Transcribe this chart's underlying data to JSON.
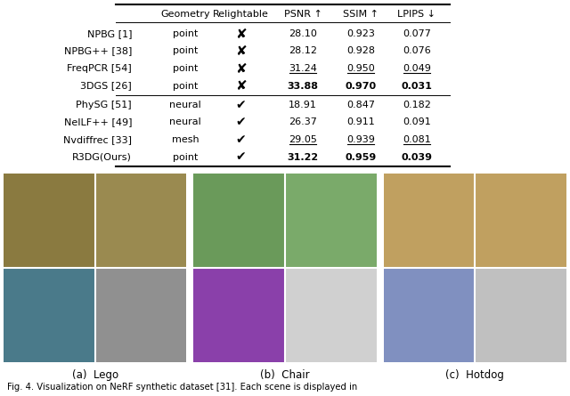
{
  "rows_group1": [
    {
      "method": "NPBG [1]",
      "geometry": "point",
      "relightable": false,
      "psnr": "28.10",
      "ssim": "0.923",
      "lpips": "0.077",
      "bold_psnr": false,
      "bold_ssim": false,
      "bold_lpips": false,
      "ul_psnr": false,
      "ul_ssim": false,
      "ul_lpips": false
    },
    {
      "method": "NPBG++ [38]",
      "geometry": "point",
      "relightable": false,
      "psnr": "28.12",
      "ssim": "0.928",
      "lpips": "0.076",
      "bold_psnr": false,
      "bold_ssim": false,
      "bold_lpips": false,
      "ul_psnr": false,
      "ul_ssim": false,
      "ul_lpips": false
    },
    {
      "method": "FreqPCR [54]",
      "geometry": "point",
      "relightable": false,
      "psnr": "31.24",
      "ssim": "0.950",
      "lpips": "0.049",
      "bold_psnr": false,
      "bold_ssim": false,
      "bold_lpips": false,
      "ul_psnr": true,
      "ul_ssim": true,
      "ul_lpips": true
    },
    {
      "method": "3DGS [26]",
      "geometry": "point",
      "relightable": false,
      "psnr": "33.88",
      "ssim": "0.970",
      "lpips": "0.031",
      "bold_psnr": true,
      "bold_ssim": true,
      "bold_lpips": true,
      "ul_psnr": false,
      "ul_ssim": false,
      "ul_lpips": false
    }
  ],
  "rows_group2": [
    {
      "method": "PhySG [51]",
      "geometry": "neural",
      "relightable": true,
      "psnr": "18.91",
      "ssim": "0.847",
      "lpips": "0.182",
      "bold_psnr": false,
      "bold_ssim": false,
      "bold_lpips": false,
      "ul_psnr": false,
      "ul_ssim": false,
      "ul_lpips": false
    },
    {
      "method": "NeILF++ [49]",
      "geometry": "neural",
      "relightable": true,
      "psnr": "26.37",
      "ssim": "0.911",
      "lpips": "0.091",
      "bold_psnr": false,
      "bold_ssim": false,
      "bold_lpips": false,
      "ul_psnr": false,
      "ul_ssim": false,
      "ul_lpips": false
    },
    {
      "method": "Nvdiffrec [33]",
      "geometry": "mesh",
      "relightable": true,
      "psnr": "29.05",
      "ssim": "0.939",
      "lpips": "0.081",
      "bold_psnr": false,
      "bold_ssim": false,
      "bold_lpips": false,
      "ul_psnr": true,
      "ul_ssim": true,
      "ul_lpips": true
    },
    {
      "method": "R3DG(Ours)",
      "geometry": "point",
      "relightable": true,
      "psnr": "31.22",
      "ssim": "0.959",
      "lpips": "0.039",
      "bold_psnr": true,
      "bold_ssim": true,
      "bold_lpips": true,
      "ul_psnr": false,
      "ul_ssim": false,
      "ul_lpips": false
    }
  ],
  "subcaptions": [
    "(a)  Lego",
    "(b)  Chair",
    "(c)  Hotdog"
  ],
  "caption": "Fig. 4. Visualization on NeRF synthetic dataset [31]. Each scene is displayed in",
  "bg_color": "#ffffff"
}
